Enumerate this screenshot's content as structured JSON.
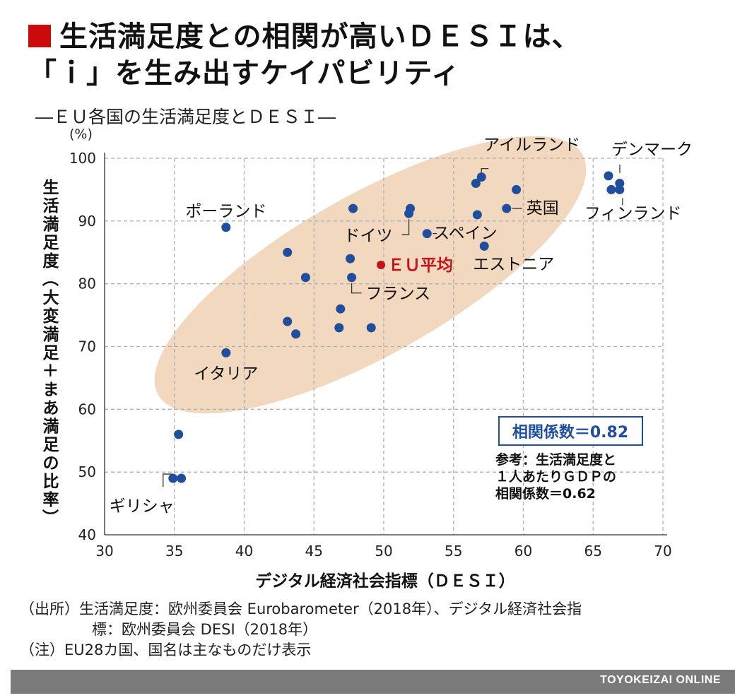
{
  "title": {
    "line1": "生活満足度との相関が高いＤＥＳＩは、",
    "line2": "「ｉ」を生み出すケイパビリティ"
  },
  "subtitle": "―ＥＵ各国の生活満足度とＤＥＳＩ―",
  "colors": {
    "accent": "#cc0a0a",
    "dot": "#1f4e9c",
    "eu_avg": "#c4121a",
    "ellipse": "#f2d8bf",
    "grid": "#b0b0b0",
    "corr_box": "#1f4e9c",
    "footer": "#7a7a7a"
  },
  "chart_data": {
    "type": "scatter",
    "title": "",
    "xlabel": "デジタル経済社会指標（ＤＥＳＩ）",
    "ylabel": "生活満足度（大変満足＋まあ満足の比率）",
    "y_unit": "(%)",
    "xlim": [
      30,
      70
    ],
    "ylim": [
      40,
      100
    ],
    "xticks": [
      30,
      35,
      40,
      45,
      50,
      55,
      60,
      65,
      70
    ],
    "yticks": [
      40,
      50,
      60,
      70,
      80,
      90,
      100
    ],
    "grid": true,
    "points": [
      {
        "x": 34.9,
        "y": 49
      },
      {
        "x": 35.5,
        "y": 49
      },
      {
        "x": 35.3,
        "y": 56
      },
      {
        "x": 38.7,
        "y": 69
      },
      {
        "x": 38.7,
        "y": 89
      },
      {
        "x": 43.1,
        "y": 85
      },
      {
        "x": 43.1,
        "y": 74
      },
      {
        "x": 43.7,
        "y": 72
      },
      {
        "x": 44.4,
        "y": 81
      },
      {
        "x": 46.8,
        "y": 73
      },
      {
        "x": 46.9,
        "y": 76
      },
      {
        "x": 47.6,
        "y": 84
      },
      {
        "x": 47.7,
        "y": 81
      },
      {
        "x": 47.8,
        "y": 92
      },
      {
        "x": 49.1,
        "y": 73
      },
      {
        "x": 51.8,
        "y": 91.2
      },
      {
        "x": 51.9,
        "y": 92
      },
      {
        "x": 53.1,
        "y": 88
      },
      {
        "x": 56.6,
        "y": 96
      },
      {
        "x": 56.7,
        "y": 91
      },
      {
        "x": 57.0,
        "y": 97
      },
      {
        "x": 57.2,
        "y": 86
      },
      {
        "x": 58.8,
        "y": 92
      },
      {
        "x": 59.5,
        "y": 95
      },
      {
        "x": 66.1,
        "y": 97.2
      },
      {
        "x": 66.3,
        "y": 95
      },
      {
        "x": 66.9,
        "y": 95
      },
      {
        "x": 66.9,
        "y": 96
      }
    ],
    "eu_average": {
      "x": 49.8,
      "y": 83,
      "label": "ＥＵ平均"
    },
    "labels": [
      {
        "text": "アイルランド",
        "x": 57.0,
        "y": 97
      },
      {
        "text": "デンマーク",
        "x": 66.1,
        "y": 97.2
      },
      {
        "text": "英国",
        "x": 58.8,
        "y": 92
      },
      {
        "text": "フィンランド",
        "x": 66.3,
        "y": 95
      },
      {
        "text": "ポーランド",
        "x": 38.7,
        "y": 89
      },
      {
        "text": "ドイツ",
        "x": 51.8,
        "y": 91.2
      },
      {
        "text": "スペイン",
        "x": 53.1,
        "y": 88
      },
      {
        "text": "エストニア",
        "x": 57.2,
        "y": 86
      },
      {
        "text": "フランス",
        "x": 47.7,
        "y": 81
      },
      {
        "text": "イタリア",
        "x": 38.7,
        "y": 69
      },
      {
        "text": "ギリシャ",
        "x": 34.9,
        "y": 49
      }
    ],
    "annotations": {
      "correlation": "相関係数＝0.82",
      "reference_lines": [
        "参考：生活満足度と",
        "１人あたりＧＤＰの",
        "相関係数＝0.62"
      ]
    }
  },
  "notes": {
    "source_line1": "（出所）生活満足度：欧州委員会 Eurobarometer（2018年）、デジタル経済社会指",
    "source_line2": "標：欧州委員会 DESI（2018年）",
    "note": "（注）EU28カ国、国名は主なものだけ表示"
  },
  "footer": "TOYOKEIZAI ONLINE"
}
